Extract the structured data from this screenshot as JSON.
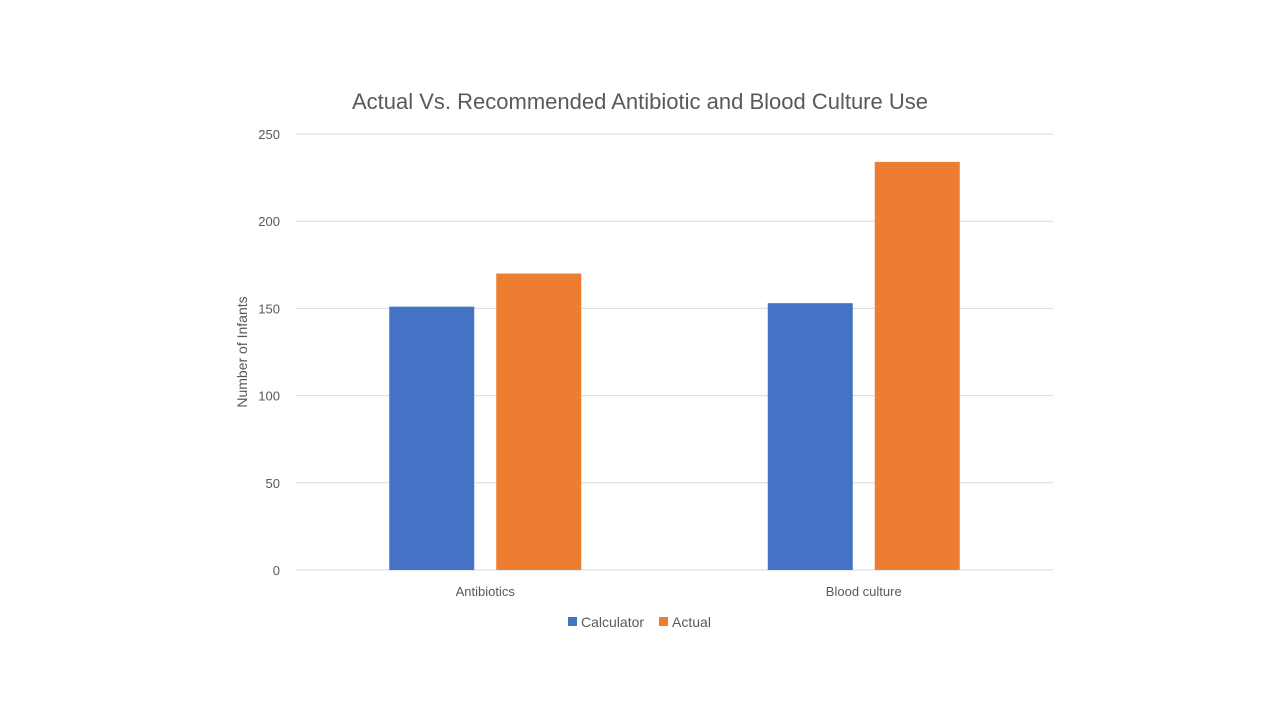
{
  "chart_data": {
    "type": "bar",
    "title": "Actual Vs. Recommended Antibiotic and Blood Culture Use",
    "xlabel": "",
    "ylabel": "Number of Infants",
    "categories": [
      "Antibiotics",
      "Blood culture"
    ],
    "series": [
      {
        "name": "Calculator",
        "color": "#4472c4",
        "values": [
          151,
          153
        ]
      },
      {
        "name": "Actual",
        "color": "#ed7d31",
        "values": [
          170,
          234
        ]
      }
    ],
    "ylim": [
      0,
      250
    ],
    "yticks": [
      0,
      50,
      100,
      150,
      200,
      250
    ],
    "grid": true,
    "legend_position": "bottom"
  }
}
